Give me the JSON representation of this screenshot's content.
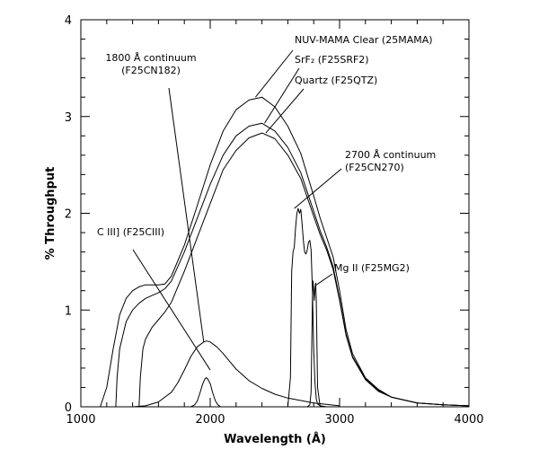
{
  "chart_data": {
    "type": "line",
    "title": "",
    "xlabel": "Wavelength (Å)",
    "ylabel": "% Throughput",
    "xlim": [
      1000,
      4000
    ],
    "ylim": [
      0,
      4
    ],
    "xticks": [
      1000,
      2000,
      3000,
      4000
    ],
    "yticks": [
      0,
      1,
      2,
      3,
      4
    ],
    "grid": false,
    "legend": "none",
    "line_color": "#000000",
    "series": [
      {
        "name": "NUV-MAMA Clear (25MAMA)",
        "x": [
          1150,
          1200,
          1250,
          1300,
          1350,
          1400,
          1450,
          1500,
          1550,
          1600,
          1650,
          1700,
          1800,
          1900,
          2000,
          2100,
          2200,
          2300,
          2400,
          2500,
          2600,
          2700,
          2800,
          2850,
          2900,
          2950,
          3000,
          3050,
          3100,
          3200,
          3300,
          3400,
          3600,
          3800,
          4000
        ],
        "y": [
          0.0,
          0.2,
          0.6,
          0.95,
          1.12,
          1.2,
          1.24,
          1.26,
          1.26,
          1.26,
          1.27,
          1.35,
          1.67,
          2.08,
          2.5,
          2.85,
          3.07,
          3.17,
          3.2,
          3.1,
          2.9,
          2.62,
          2.18,
          1.95,
          1.75,
          1.55,
          1.2,
          0.8,
          0.55,
          0.3,
          0.18,
          0.1,
          0.04,
          0.02,
          0.01
        ]
      },
      {
        "name": "SrF2 (F25SRF2)",
        "x": [
          1270,
          1280,
          1300,
          1350,
          1400,
          1450,
          1500,
          1550,
          1600,
          1650,
          1700,
          1800,
          1900,
          2000,
          2100,
          2200,
          2300,
          2400,
          2500,
          2600,
          2700,
          2800,
          2850,
          2900,
          2950,
          3000,
          3050,
          3100,
          3200,
          3300,
          3400,
          3600,
          3800,
          4000
        ],
        "y": [
          0.0,
          0.3,
          0.6,
          0.88,
          1.0,
          1.07,
          1.12,
          1.15,
          1.18,
          1.22,
          1.3,
          1.6,
          1.95,
          2.3,
          2.6,
          2.8,
          2.9,
          2.93,
          2.85,
          2.68,
          2.42,
          2.02,
          1.82,
          1.65,
          1.45,
          1.12,
          0.75,
          0.52,
          0.29,
          0.17,
          0.1,
          0.04,
          0.02,
          0.01
        ]
      },
      {
        "name": "Quartz (F25QTZ)",
        "x": [
          1450,
          1460,
          1480,
          1500,
          1550,
          1600,
          1650,
          1700,
          1800,
          1900,
          2000,
          2100,
          2200,
          2300,
          2400,
          2500,
          2600,
          2700,
          2800,
          2850,
          2900,
          2950,
          3000,
          3050,
          3100,
          3200,
          3300,
          3400,
          3600,
          3800,
          4000
        ],
        "y": [
          0.0,
          0.3,
          0.6,
          0.7,
          0.82,
          0.9,
          0.98,
          1.08,
          1.4,
          1.75,
          2.1,
          2.45,
          2.65,
          2.78,
          2.83,
          2.77,
          2.6,
          2.36,
          1.97,
          1.78,
          1.62,
          1.42,
          1.1,
          0.74,
          0.51,
          0.28,
          0.16,
          0.1,
          0.04,
          0.02,
          0.01
        ]
      },
      {
        "name": "1800 Å continuum (F25CN182)",
        "x": [
          1200,
          1300,
          1400,
          1500,
          1600,
          1700,
          1750,
          1800,
          1850,
          1900,
          1950,
          1970,
          2000,
          2050,
          2100,
          2150,
          2200,
          2300,
          2400,
          2500,
          2600,
          2800,
          3000
        ],
        "y": [
          0.0,
          0.0,
          0.0,
          0.01,
          0.05,
          0.15,
          0.25,
          0.38,
          0.52,
          0.62,
          0.67,
          0.68,
          0.67,
          0.62,
          0.55,
          0.47,
          0.39,
          0.27,
          0.19,
          0.13,
          0.09,
          0.04,
          0.01
        ]
      },
      {
        "name": "C III] (F25CIII)",
        "x": [
          1850,
          1880,
          1900,
          1920,
          1940,
          1960,
          1970,
          1980,
          2000,
          2020,
          2040,
          2060,
          2080
        ],
        "y": [
          0.0,
          0.02,
          0.06,
          0.14,
          0.23,
          0.29,
          0.3,
          0.29,
          0.24,
          0.14,
          0.06,
          0.02,
          0.0
        ]
      },
      {
        "name": "2700 Å continuum (F25CN270)",
        "x": [
          2600,
          2620,
          2630,
          2640,
          2650,
          2660,
          2670,
          2680,
          2690,
          2700,
          2710,
          2720,
          2730,
          2740,
          2750,
          2760,
          2770,
          2780,
          2790,
          2800,
          2810,
          2820,
          2830,
          2850,
          2900
        ],
        "y": [
          0.0,
          0.3,
          1.4,
          1.6,
          1.65,
          1.85,
          2.0,
          2.05,
          2.0,
          2.04,
          1.9,
          1.72,
          1.6,
          1.58,
          1.62,
          1.7,
          1.72,
          1.62,
          1.2,
          0.6,
          0.25,
          0.08,
          0.03,
          0.01,
          0.0
        ]
      },
      {
        "name": "Mg II (F25MG2)",
        "x": [
          2750,
          2770,
          2780,
          2790,
          2795,
          2800,
          2805,
          2810,
          2815,
          2820,
          2830,
          2850
        ],
        "y": [
          0.0,
          0.02,
          0.15,
          1.12,
          1.3,
          1.2,
          1.1,
          1.22,
          1.28,
          1.1,
          0.2,
          0.0
        ]
      }
    ],
    "annotations": [
      {
        "lines": [
          "NUV-MAMA Clear (25MAMA)"
        ],
        "series": 0
      },
      {
        "lines": [
          "SrF₂ (F25SRF2)"
        ],
        "series": 1
      },
      {
        "lines": [
          "Quartz (F25QTZ)"
        ],
        "series": 2
      },
      {
        "lines": [
          "1800 Å continuum",
          "(F25CN182)"
        ],
        "series": 3
      },
      {
        "lines": [
          "C III] (F25CIII)"
        ],
        "series": 4
      },
      {
        "lines": [
          "2700 Å continuum",
          "(F25CN270)"
        ],
        "series": 5
      },
      {
        "lines": [
          "Mg II (F25MG2)"
        ],
        "series": 6
      }
    ]
  }
}
